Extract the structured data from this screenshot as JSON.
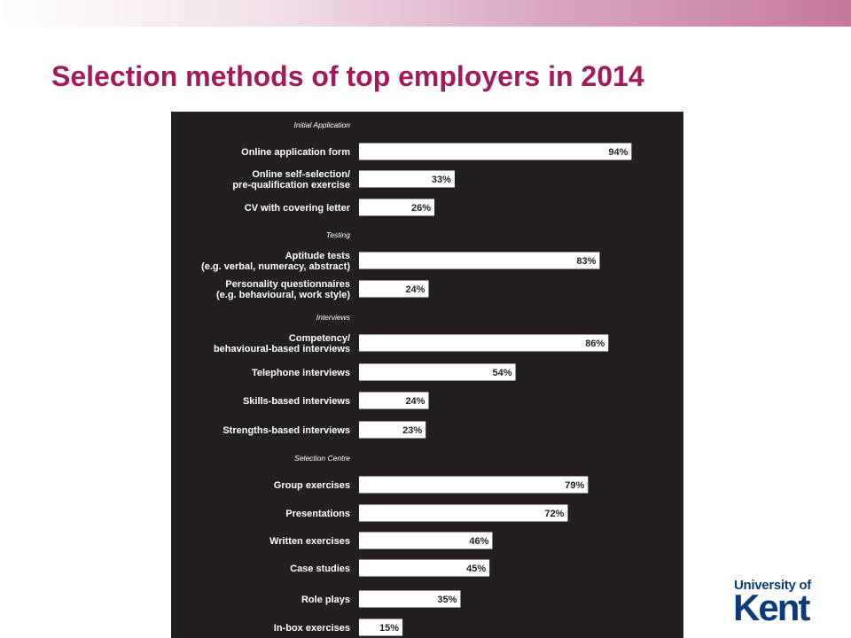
{
  "slide": {
    "title": "Selection methods of top employers in 2014"
  },
  "logo": {
    "line1": "University of",
    "line2": "Kent",
    "color": "#0d3b7a"
  },
  "colors": {
    "title": "#a3195b",
    "panel_background": "#231f20",
    "bars": "#ffffff"
  },
  "chart_data": {
    "type": "bar",
    "orientation": "horizontal",
    "value_unit": "%",
    "xlim": [
      0,
      100
    ],
    "grid": false,
    "legend": "none",
    "sections": [
      {
        "name": "Initial Application",
        "items": [
          {
            "label": [
              "Online application form"
            ],
            "value": 94
          },
          {
            "label": [
              "Online self-selection/",
              "pre-qualification exercise"
            ],
            "value": 33
          },
          {
            "label": [
              "CV with covering letter"
            ],
            "value": 26
          }
        ]
      },
      {
        "name": "Testing",
        "items": [
          {
            "label": [
              "Aptitude tests",
              "(e.g. verbal, numeracy, abstract)"
            ],
            "value": 83
          },
          {
            "label": [
              "Personality questionnaires",
              "(e.g. behavioural, work style)"
            ],
            "value": 24
          }
        ]
      },
      {
        "name": "Interviews",
        "items": [
          {
            "label": [
              "Competency/",
              "behavioural-based interviews"
            ],
            "value": 86
          },
          {
            "label": [
              "Telephone interviews"
            ],
            "value": 54
          },
          {
            "label": [
              "Skills-based interviews"
            ],
            "value": 24
          },
          {
            "label": [
              "Strengths-based interviews"
            ],
            "value": 23
          }
        ]
      },
      {
        "name": "Selection Centre",
        "items": [
          {
            "label": [
              "Group exercises"
            ],
            "value": 79
          },
          {
            "label": [
              "Presentations"
            ],
            "value": 72
          },
          {
            "label": [
              "Written exercises"
            ],
            "value": 46
          },
          {
            "label": [
              "Case studies"
            ],
            "value": 45
          },
          {
            "label": [
              "Role plays"
            ],
            "value": 35
          },
          {
            "label": [
              "In-box exercises"
            ],
            "value": 15
          }
        ]
      }
    ]
  }
}
